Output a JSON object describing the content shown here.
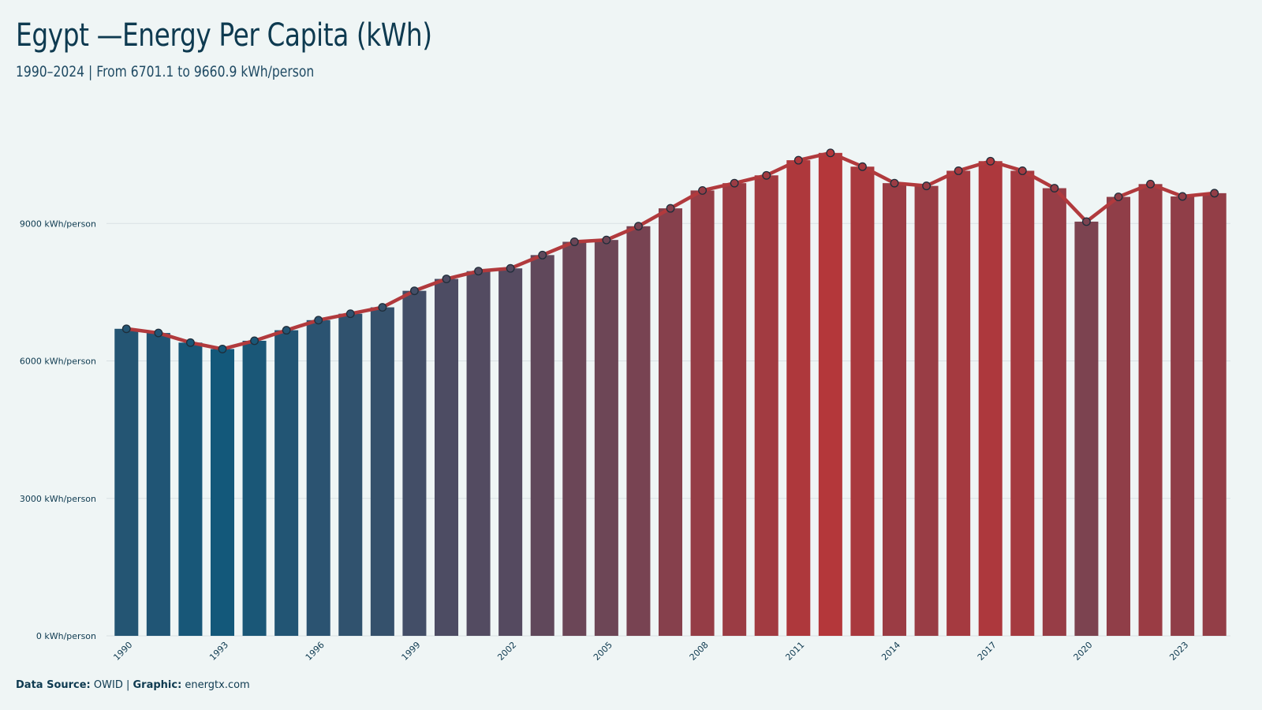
{
  "title": "Egypt —Energy Per Capita (kWh)",
  "subtitle": "1990–2024 | From 6701.1  to 9660.9  kWh/person",
  "footer": {
    "source_label": "Data Source:",
    "source_value": "OWID |",
    "graphic_label": "Graphic:",
    "graphic_value": "energtx.com"
  },
  "colors": {
    "background": "#eff5f5",
    "line": "#b13a3d",
    "low": "#13587a",
    "high": "#b4373a",
    "text": "#0e3a50"
  },
  "chart_data": {
    "type": "bar",
    "x": [
      1990,
      1991,
      1992,
      1993,
      1994,
      1995,
      1996,
      1997,
      1998,
      1999,
      2000,
      2001,
      2002,
      2003,
      2004,
      2005,
      2006,
      2007,
      2008,
      2009,
      2010,
      2011,
      2012,
      2013,
      2014,
      2015,
      2016,
      2017,
      2018,
      2019,
      2020,
      2021,
      2022,
      2023,
      2024
    ],
    "values": [
      6701.1,
      6610,
      6400,
      6260,
      6440,
      6670,
      6890,
      7030,
      7170,
      7530,
      7790,
      7960,
      8020,
      8310,
      8600,
      8640,
      8940,
      9330,
      9720,
      9880,
      10050,
      10380,
      10540,
      10240,
      9880,
      9820,
      10150,
      10360,
      10150,
      9770,
      9040,
      9580,
      9860,
      9590,
      9660.9
    ],
    "series": [
      {
        "type": "bar",
        "values": "values"
      },
      {
        "type": "line",
        "values": "values"
      }
    ],
    "x_tick_labels": [
      "1990",
      "1993",
      "1996",
      "1999",
      "2002",
      "2005",
      "2008",
      "2011",
      "2014",
      "2017",
      "2020",
      "2023"
    ],
    "y_ticks": [
      0,
      3000,
      6000,
      9000
    ],
    "y_tick_labels": [
      "0 kWh/person",
      "3000 kWh/person",
      "6000 kWh/person",
      "9000 kWh/person"
    ],
    "ylim": [
      0,
      10950
    ],
    "xlabel": "",
    "ylabel": "",
    "grid": true,
    "legend": "none"
  }
}
